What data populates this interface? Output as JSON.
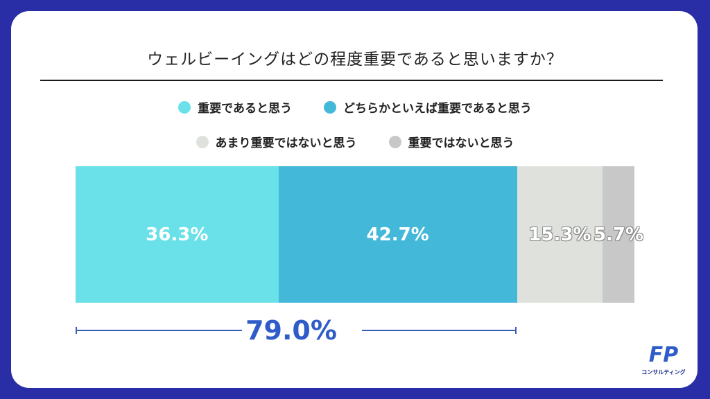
{
  "title": "ウェルビーイングはどの程度重要であると思いますか？",
  "total_label": "79.0%",
  "logo": {
    "mark": "FP",
    "caption": "コンサルティング"
  },
  "chart_data": {
    "type": "bar",
    "stacked": true,
    "orientation": "horizontal",
    "title": "ウェルビーイングはどの程度重要であると思いますか？",
    "series": [
      {
        "name": "重要であると思う",
        "value": 36.3,
        "label": "36.3%",
        "color": "#6ae0e8"
      },
      {
        "name": "どちらかといえば重要であると思う",
        "value": 42.7,
        "label": "42.7%",
        "color": "#44b8d8"
      },
      {
        "name": "あまり重要ではないと思う",
        "value": 15.3,
        "label": "15.3%",
        "color": "#dfe2dc"
      },
      {
        "name": "重要ではないと思う",
        "value": 5.7,
        "label": "5.7%",
        "color": "#c8c8c8"
      }
    ],
    "annotation": {
      "text": "79.0%",
      "spans_series": [
        0,
        1
      ]
    },
    "legend_position": "top"
  }
}
